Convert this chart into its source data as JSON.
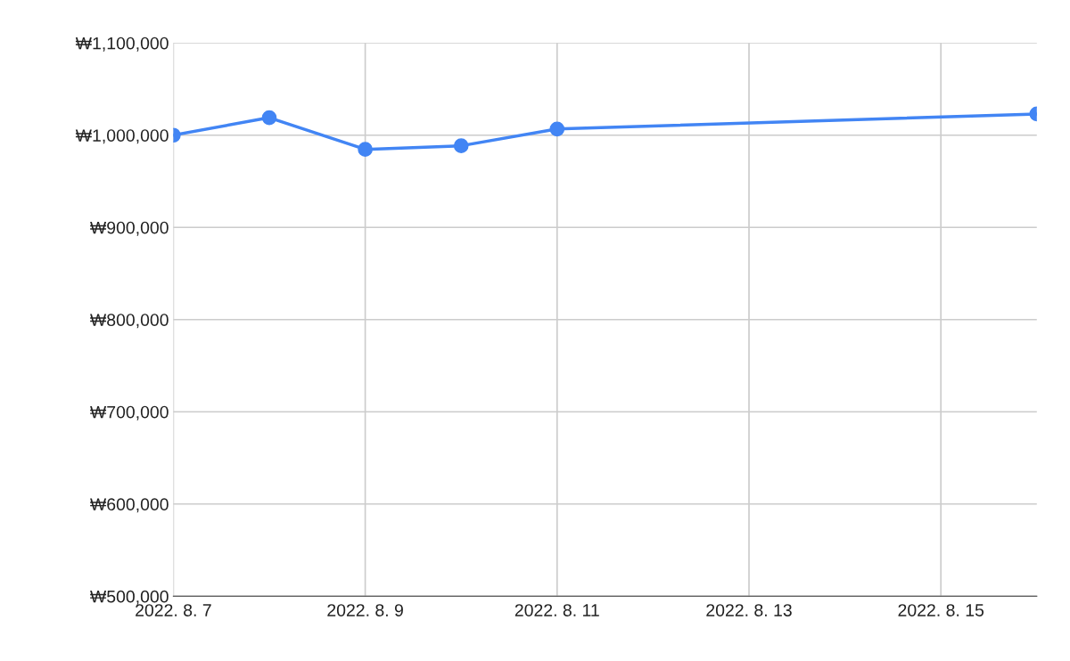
{
  "chart_data": {
    "type": "line",
    "x": [
      "2022-08-07",
      "2022-08-08",
      "2022-08-09",
      "2022-08-10",
      "2022-08-11",
      "2022-08-16"
    ],
    "series": [
      {
        "color": "#4285f4",
        "values": [
          1000000,
          1019000,
          984600,
          988500,
          1006700,
          1023000
        ]
      }
    ],
    "xlim": [
      "2022-08-07",
      "2022-08-16"
    ],
    "xticks": [
      {
        "value": "2022-08-07",
        "label": "2022. 8. 7"
      },
      {
        "value": "2022-08-09",
        "label": "2022. 8. 9"
      },
      {
        "value": "2022-08-11",
        "label": "2022. 8. 11"
      },
      {
        "value": "2022-08-13",
        "label": "2022. 8. 13"
      },
      {
        "value": "2022-08-15",
        "label": "2022. 8. 15"
      }
    ],
    "ylim": [
      500000,
      1100000
    ],
    "yticks": [
      {
        "value": 500000,
        "label": "₩500,000"
      },
      {
        "value": 600000,
        "label": "₩600,000"
      },
      {
        "value": 700000,
        "label": "₩700,000"
      },
      {
        "value": 800000,
        "label": "₩800,000"
      },
      {
        "value": 900000,
        "label": "₩900,000"
      },
      {
        "value": 1000000,
        "label": "₩1,000,000"
      },
      {
        "value": 1100000,
        "label": "₩1,100,000"
      }
    ],
    "grid": true,
    "marker": "circle",
    "line_style": "solid",
    "legend": false
  }
}
